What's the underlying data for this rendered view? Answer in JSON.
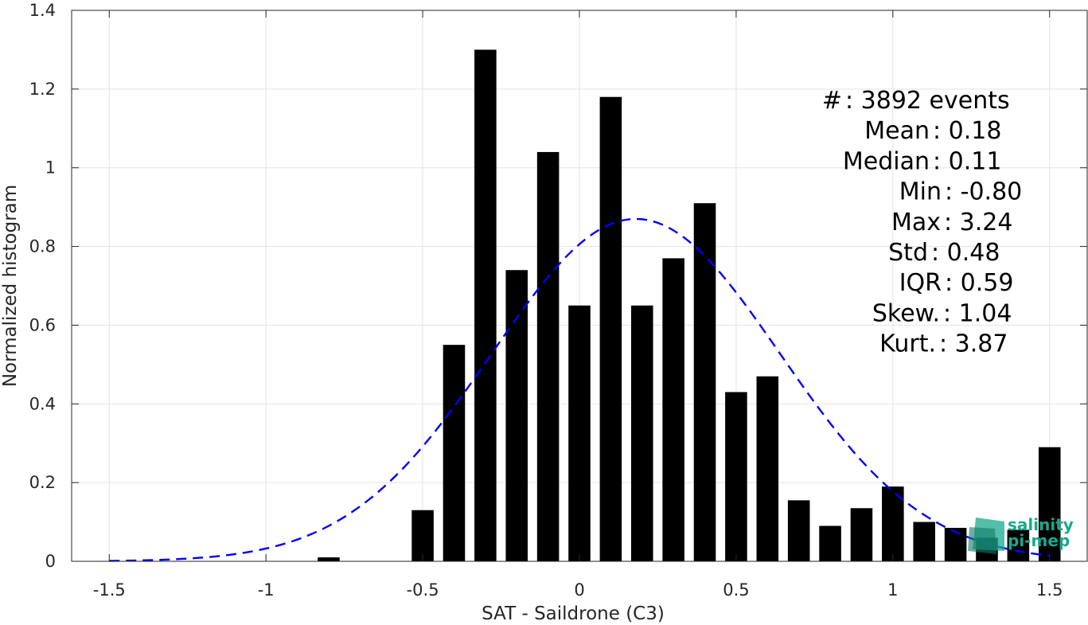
{
  "chart_data": {
    "type": "bar",
    "xlabel": "SAT - Saildrone (C3)",
    "ylabel": "Normalized histogram",
    "xlim": [
      -1.62,
      1.62
    ],
    "ylim": [
      0,
      1.4
    ],
    "xticks": [
      -1.5,
      -1,
      -0.5,
      0,
      0.5,
      1,
      1.5
    ],
    "xtick_labels": [
      "-1.5",
      "-1",
      "-0.5",
      "0",
      "0.5",
      "1",
      "1.5"
    ],
    "yticks": [
      0,
      0.2,
      0.4,
      0.6,
      0.8,
      1,
      1.2,
      1.4
    ],
    "ytick_labels": [
      "0",
      "0.2",
      "0.4",
      "0.6",
      "0.8",
      "1",
      "1.2",
      "1.4"
    ],
    "grid": true,
    "bar_color": "#000000",
    "bar_width": 0.07,
    "bars": [
      {
        "x": -0.8,
        "y": 0.01
      },
      {
        "x": -0.5,
        "y": 0.13
      },
      {
        "x": -0.4,
        "y": 0.55
      },
      {
        "x": -0.3,
        "y": 1.3
      },
      {
        "x": -0.2,
        "y": 0.74
      },
      {
        "x": -0.1,
        "y": 1.04
      },
      {
        "x": 0.0,
        "y": 0.65
      },
      {
        "x": 0.1,
        "y": 1.18
      },
      {
        "x": 0.2,
        "y": 0.65
      },
      {
        "x": 0.3,
        "y": 0.77
      },
      {
        "x": 0.4,
        "y": 0.91
      },
      {
        "x": 0.5,
        "y": 0.43
      },
      {
        "x": 0.6,
        "y": 0.47
      },
      {
        "x": 0.7,
        "y": 0.155
      },
      {
        "x": 0.8,
        "y": 0.09
      },
      {
        "x": 0.9,
        "y": 0.135
      },
      {
        "x": 1.0,
        "y": 0.19
      },
      {
        "x": 1.1,
        "y": 0.1
      },
      {
        "x": 1.2,
        "y": 0.085
      },
      {
        "x": 1.3,
        "y": 0.06
      },
      {
        "x": 1.4,
        "y": 0.08
      },
      {
        "x": 1.5,
        "y": 0.29
      }
    ],
    "fit_curve": {
      "style": "dashed",
      "color": "#0000ff",
      "mean": 0.18,
      "std": 0.46,
      "xrange": [
        -1.5,
        1.5
      ]
    },
    "stats": [
      {
        "label": "#  ",
        "value": ": 3892 events"
      },
      {
        "label": "Mean ",
        "value": ": 0.18"
      },
      {
        "label": "Median ",
        "value": ": 0.11"
      },
      {
        "label": "Min ",
        "value": ": -0.80"
      },
      {
        "label": "Max ",
        "value": ": 3.24"
      },
      {
        "label": "Std ",
        "value": ": 0.48"
      },
      {
        "label": "IQR ",
        "value": ": 0.59"
      },
      {
        "label": "Skew. ",
        "value": ": 1.04"
      },
      {
        "label": "Kurt. ",
        "value": ": 3.87"
      }
    ]
  },
  "logo": {
    "line1": "salinity",
    "line2": "pi-mep",
    "color": "#1aa88c"
  }
}
